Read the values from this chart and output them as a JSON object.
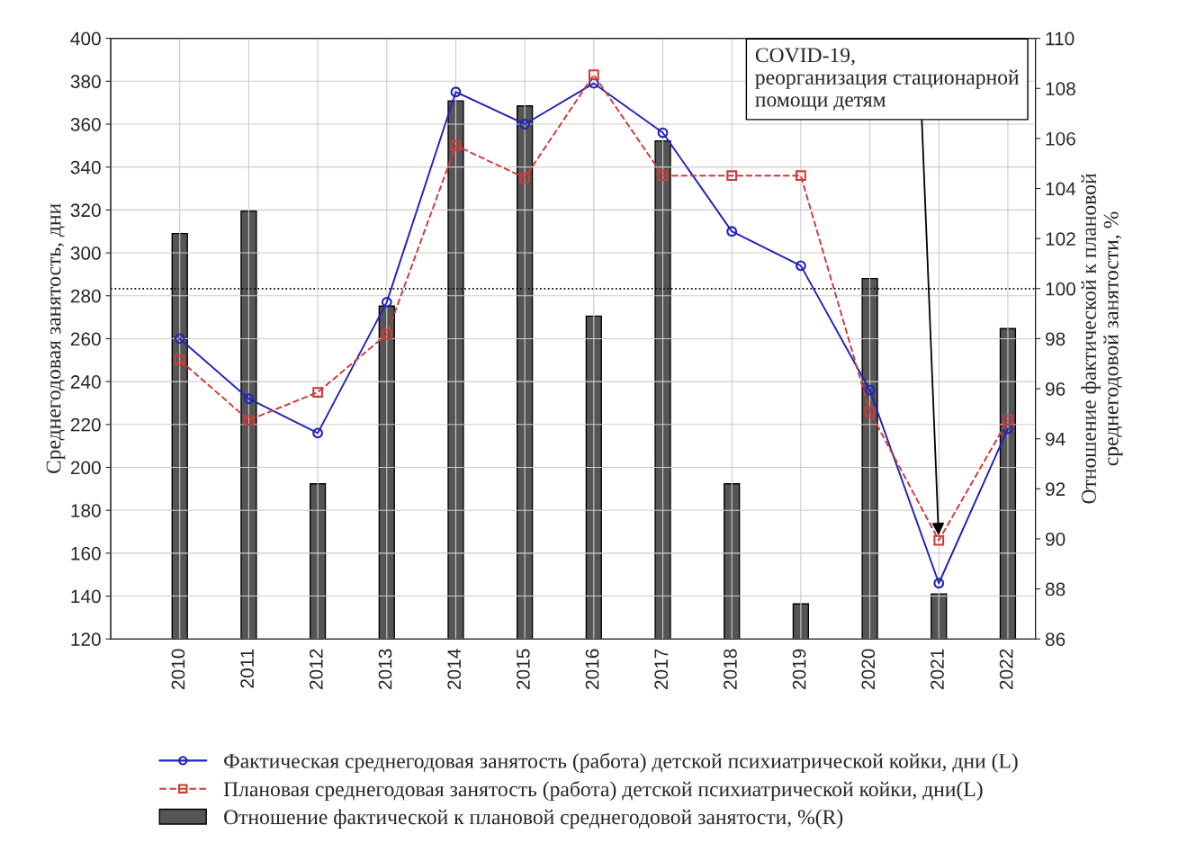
{
  "chart_data": {
    "type": "line",
    "categories": [
      "2010",
      "2011",
      "2012",
      "2013",
      "2014",
      "2015",
      "2016",
      "2017",
      "2018",
      "2019",
      "2020",
      "2021",
      "2022"
    ],
    "ylabel": "Среднегодовая занятость, дни",
    "y2label": "Отношение фактической к плановой\nсреднегодовой занятости, %",
    "ylim": [
      120,
      400
    ],
    "yticks": [
      120,
      140,
      160,
      180,
      200,
      220,
      240,
      260,
      280,
      300,
      320,
      340,
      360,
      380,
      400
    ],
    "y2lim": [
      86,
      110
    ],
    "y2ticks": [
      86,
      88,
      90,
      92,
      94,
      96,
      98,
      100,
      102,
      104,
      106,
      108,
      110
    ],
    "grid": true,
    "legend": "bottom",
    "series": [
      {
        "name": "Фактическая среднегодовая занятость (работа) детской психиатрической койки, дни (L)",
        "color": "#2222bb",
        "marker": "circle",
        "line_style": "solid",
        "values": [
          260,
          232,
          216,
          277,
          375,
          360,
          379,
          356,
          310,
          294,
          236,
          146,
          218
        ]
      },
      {
        "name": "Плановая среднегодовая занятость (работа) детской психиатрической койки, дни(L)",
        "color": "#d03a3a",
        "marker": "square",
        "line_style": "dashed",
        "values": [
          250,
          222,
          235,
          262,
          350,
          335,
          383,
          336,
          336,
          336,
          226,
          166,
          222
        ]
      },
      {
        "name": "Отношение фактической к плановой среднегодовой занятости, %(R)",
        "type": "bar",
        "axis": "y2",
        "color": "#555555",
        "values": [
          102.2,
          103.1,
          92.2,
          99.3,
          107.5,
          107.3,
          98.9,
          105.9,
          92.2,
          87.4,
          100.4,
          87.8,
          98.4
        ]
      }
    ],
    "ref_lines": [
      {
        "axis": "y2",
        "value": 100,
        "color": "#000000",
        "line_style": "dotted"
      }
    ],
    "annotations": [
      {
        "text": "COVID-19,\nреорганизация стационарной\nпомощи детям",
        "x": "2021",
        "y": 166
      }
    ]
  }
}
